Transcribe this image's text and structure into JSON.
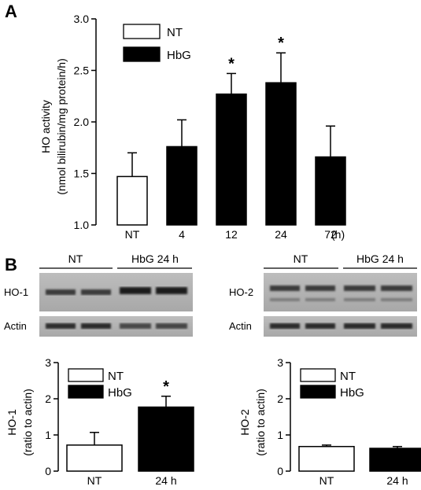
{
  "chart_data": [
    {
      "panel": "A",
      "type": "bar",
      "categories": [
        "NT",
        "4",
        "12",
        "24",
        "72"
      ],
      "x_unit": "(h)",
      "values": [
        1.47,
        1.76,
        2.27,
        2.38,
        1.66
      ],
      "errors": [
        0.23,
        0.26,
        0.2,
        0.29,
        0.3
      ],
      "fills": [
        "white",
        "black",
        "black",
        "black",
        "black"
      ],
      "significant": [
        false,
        false,
        true,
        true,
        false
      ],
      "star": "*",
      "ylabel_line1": "HO activity",
      "ylabel_line2": "(nmol bilirubin/mg protein/h)",
      "ylim": [
        1.0,
        3.0
      ],
      "yticks": [
        "1.0",
        "1.5",
        "2.0",
        "2.5",
        "3.0"
      ],
      "legend": [
        {
          "label": "NT",
          "fill": "white"
        },
        {
          "label": "HbG",
          "fill": "black"
        }
      ],
      "legend_position": "top-left"
    },
    {
      "panel": "B-left",
      "type": "bar",
      "categories": [
        "NT",
        "24 h"
      ],
      "values": [
        0.72,
        1.77
      ],
      "errors": [
        0.35,
        0.3
      ],
      "fills": [
        "white",
        "black"
      ],
      "significant": [
        false,
        true
      ],
      "star": "*",
      "ylabel_line1": "HO-1",
      "ylabel_line2": "(ratio to actin)",
      "ylim": [
        0,
        3
      ],
      "yticks": [
        "0",
        "1",
        "2",
        "3"
      ],
      "legend": [
        {
          "label": "NT",
          "fill": "white"
        },
        {
          "label": "HbG",
          "fill": "black"
        }
      ],
      "legend_position": "top-left"
    },
    {
      "panel": "B-right",
      "type": "bar",
      "categories": [
        "NT",
        "24 h"
      ],
      "values": [
        0.68,
        0.63
      ],
      "errors": [
        0.04,
        0.05
      ],
      "fills": [
        "white",
        "black"
      ],
      "significant": [
        false,
        false
      ],
      "star": "*",
      "ylabel_line1": "HO-2",
      "ylabel_line2": "(ratio to actin)",
      "ylim": [
        0,
        3
      ],
      "yticks": [
        "0",
        "1",
        "2",
        "3"
      ],
      "legend": [
        {
          "label": "NT",
          "fill": "white"
        },
        {
          "label": "HbG",
          "fill": "black"
        }
      ],
      "legend_position": "top-left"
    }
  ],
  "panel_labels": {
    "a": "A",
    "b": "B"
  },
  "blots": {
    "left": {
      "group_nt": "NT",
      "group_hbg": "HbG 24 h",
      "row1_label": "HO-1",
      "row2_label": "Actin"
    },
    "right": {
      "group_nt": "NT",
      "group_hbg": "HbG 24 h",
      "row1_label": "HO-2",
      "row2_label": "Actin"
    }
  }
}
